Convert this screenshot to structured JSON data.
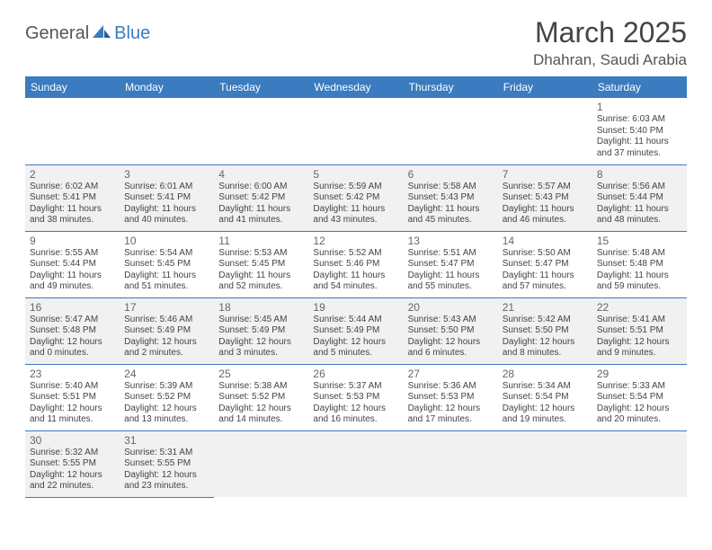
{
  "logo": {
    "part1": "General",
    "part2": "Blue"
  },
  "title": "March 2025",
  "location": "Dhahran, Saudi Arabia",
  "colors": {
    "header_bg": "#3b7bbf",
    "header_text": "#ffffff",
    "alt_row_bg": "#f1f1f1",
    "border": "#3b7bbf",
    "text": "#444444"
  },
  "day_headers": [
    "Sunday",
    "Monday",
    "Tuesday",
    "Wednesday",
    "Thursday",
    "Friday",
    "Saturday"
  ],
  "weeks": [
    [
      null,
      null,
      null,
      null,
      null,
      null,
      {
        "n": "1",
        "sr": "Sunrise: 6:03 AM",
        "ss": "Sunset: 5:40 PM",
        "dl": "Daylight: 11 hours and 37 minutes."
      }
    ],
    [
      {
        "n": "2",
        "sr": "Sunrise: 6:02 AM",
        "ss": "Sunset: 5:41 PM",
        "dl": "Daylight: 11 hours and 38 minutes."
      },
      {
        "n": "3",
        "sr": "Sunrise: 6:01 AM",
        "ss": "Sunset: 5:41 PM",
        "dl": "Daylight: 11 hours and 40 minutes."
      },
      {
        "n": "4",
        "sr": "Sunrise: 6:00 AM",
        "ss": "Sunset: 5:42 PM",
        "dl": "Daylight: 11 hours and 41 minutes."
      },
      {
        "n": "5",
        "sr": "Sunrise: 5:59 AM",
        "ss": "Sunset: 5:42 PM",
        "dl": "Daylight: 11 hours and 43 minutes."
      },
      {
        "n": "6",
        "sr": "Sunrise: 5:58 AM",
        "ss": "Sunset: 5:43 PM",
        "dl": "Daylight: 11 hours and 45 minutes."
      },
      {
        "n": "7",
        "sr": "Sunrise: 5:57 AM",
        "ss": "Sunset: 5:43 PM",
        "dl": "Daylight: 11 hours and 46 minutes."
      },
      {
        "n": "8",
        "sr": "Sunrise: 5:56 AM",
        "ss": "Sunset: 5:44 PM",
        "dl": "Daylight: 11 hours and 48 minutes."
      }
    ],
    [
      {
        "n": "9",
        "sr": "Sunrise: 5:55 AM",
        "ss": "Sunset: 5:44 PM",
        "dl": "Daylight: 11 hours and 49 minutes."
      },
      {
        "n": "10",
        "sr": "Sunrise: 5:54 AM",
        "ss": "Sunset: 5:45 PM",
        "dl": "Daylight: 11 hours and 51 minutes."
      },
      {
        "n": "11",
        "sr": "Sunrise: 5:53 AM",
        "ss": "Sunset: 5:45 PM",
        "dl": "Daylight: 11 hours and 52 minutes."
      },
      {
        "n": "12",
        "sr": "Sunrise: 5:52 AM",
        "ss": "Sunset: 5:46 PM",
        "dl": "Daylight: 11 hours and 54 minutes."
      },
      {
        "n": "13",
        "sr": "Sunrise: 5:51 AM",
        "ss": "Sunset: 5:47 PM",
        "dl": "Daylight: 11 hours and 55 minutes."
      },
      {
        "n": "14",
        "sr": "Sunrise: 5:50 AM",
        "ss": "Sunset: 5:47 PM",
        "dl": "Daylight: 11 hours and 57 minutes."
      },
      {
        "n": "15",
        "sr": "Sunrise: 5:48 AM",
        "ss": "Sunset: 5:48 PM",
        "dl": "Daylight: 11 hours and 59 minutes."
      }
    ],
    [
      {
        "n": "16",
        "sr": "Sunrise: 5:47 AM",
        "ss": "Sunset: 5:48 PM",
        "dl": "Daylight: 12 hours and 0 minutes."
      },
      {
        "n": "17",
        "sr": "Sunrise: 5:46 AM",
        "ss": "Sunset: 5:49 PM",
        "dl": "Daylight: 12 hours and 2 minutes."
      },
      {
        "n": "18",
        "sr": "Sunrise: 5:45 AM",
        "ss": "Sunset: 5:49 PM",
        "dl": "Daylight: 12 hours and 3 minutes."
      },
      {
        "n": "19",
        "sr": "Sunrise: 5:44 AM",
        "ss": "Sunset: 5:49 PM",
        "dl": "Daylight: 12 hours and 5 minutes."
      },
      {
        "n": "20",
        "sr": "Sunrise: 5:43 AM",
        "ss": "Sunset: 5:50 PM",
        "dl": "Daylight: 12 hours and 6 minutes."
      },
      {
        "n": "21",
        "sr": "Sunrise: 5:42 AM",
        "ss": "Sunset: 5:50 PM",
        "dl": "Daylight: 12 hours and 8 minutes."
      },
      {
        "n": "22",
        "sr": "Sunrise: 5:41 AM",
        "ss": "Sunset: 5:51 PM",
        "dl": "Daylight: 12 hours and 9 minutes."
      }
    ],
    [
      {
        "n": "23",
        "sr": "Sunrise: 5:40 AM",
        "ss": "Sunset: 5:51 PM",
        "dl": "Daylight: 12 hours and 11 minutes."
      },
      {
        "n": "24",
        "sr": "Sunrise: 5:39 AM",
        "ss": "Sunset: 5:52 PM",
        "dl": "Daylight: 12 hours and 13 minutes."
      },
      {
        "n": "25",
        "sr": "Sunrise: 5:38 AM",
        "ss": "Sunset: 5:52 PM",
        "dl": "Daylight: 12 hours and 14 minutes."
      },
      {
        "n": "26",
        "sr": "Sunrise: 5:37 AM",
        "ss": "Sunset: 5:53 PM",
        "dl": "Daylight: 12 hours and 16 minutes."
      },
      {
        "n": "27",
        "sr": "Sunrise: 5:36 AM",
        "ss": "Sunset: 5:53 PM",
        "dl": "Daylight: 12 hours and 17 minutes."
      },
      {
        "n": "28",
        "sr": "Sunrise: 5:34 AM",
        "ss": "Sunset: 5:54 PM",
        "dl": "Daylight: 12 hours and 19 minutes."
      },
      {
        "n": "29",
        "sr": "Sunrise: 5:33 AM",
        "ss": "Sunset: 5:54 PM",
        "dl": "Daylight: 12 hours and 20 minutes."
      }
    ],
    [
      {
        "n": "30",
        "sr": "Sunrise: 5:32 AM",
        "ss": "Sunset: 5:55 PM",
        "dl": "Daylight: 12 hours and 22 minutes."
      },
      {
        "n": "31",
        "sr": "Sunrise: 5:31 AM",
        "ss": "Sunset: 5:55 PM",
        "dl": "Daylight: 12 hours and 23 minutes."
      },
      null,
      null,
      null,
      null,
      null
    ]
  ]
}
